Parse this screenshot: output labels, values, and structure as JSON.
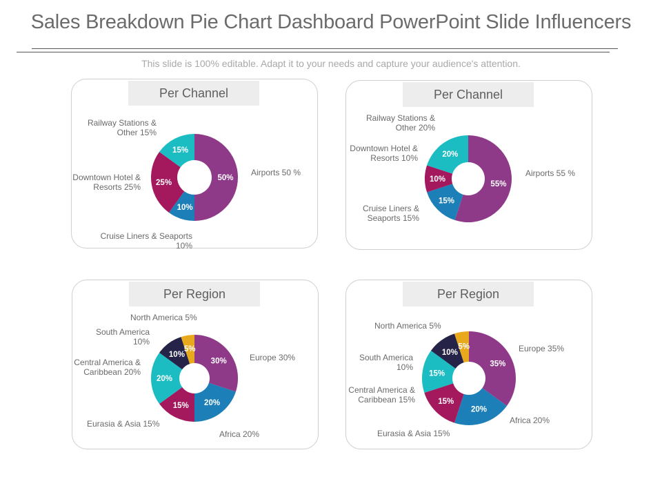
{
  "slide": {
    "title": "Sales Breakdown Pie Chart Dashboard PowerPoint Slide Influencers",
    "subtitle": "This slide is 100% editable. Adapt it to your needs and capture your audience's attention."
  },
  "colors": {
    "purple": "#8e3a88",
    "magenta": "#a4185e",
    "teal": "#1cbcc3",
    "blue": "#1c7fb8",
    "navy": "#252348",
    "gold": "#e8a91c"
  },
  "chart_data": [
    {
      "type": "pie",
      "style": "donut",
      "title": "Per Channel",
      "slices": [
        {
          "label": "Airports",
          "value": 50,
          "inner_label": "50%",
          "callout": "Airports 50 %",
          "color": "#8e3a88"
        },
        {
          "label": "Cruise Liners & Seaports",
          "value": 10,
          "inner_label": "10%",
          "callout_lines": [
            "Cruise Liners & Seaports",
            "10%"
          ],
          "color": "#1c7fb8"
        },
        {
          "label": "Downtown Hotel & Resorts",
          "value": 25,
          "inner_label": "25%",
          "callout_lines": [
            "Downtown Hotel &",
            "Resorts 25%"
          ],
          "color": "#a4185e"
        },
        {
          "label": "Railway Stations & Other",
          "value": 15,
          "inner_label": "15%",
          "callout_lines": [
            "Railway Stations &",
            "Other 15%"
          ],
          "color": "#1cbcc3"
        }
      ]
    },
    {
      "type": "pie",
      "style": "donut",
      "title": "Per Channel",
      "slices": [
        {
          "label": "Airports",
          "value": 55,
          "inner_label": "55%",
          "callout": "Airports 55 %",
          "color": "#8e3a88"
        },
        {
          "label": "Cruise Liners & Seaports",
          "value": 15,
          "inner_label": "15%",
          "callout_lines": [
            "Cruise Liners &",
            "Seaports 15%"
          ],
          "color": "#1c7fb8"
        },
        {
          "label": "Downtown Hotel & Resorts",
          "value": 10,
          "inner_label": "10%",
          "callout_lines": [
            "Downtown Hotel &",
            "Resorts 10%"
          ],
          "color": "#a4185e"
        },
        {
          "label": "Railway Stations & Other",
          "value": 20,
          "inner_label": "20%",
          "callout_lines": [
            "Railway Stations &",
            "Other 20%"
          ],
          "color": "#1cbcc3"
        }
      ]
    },
    {
      "type": "pie",
      "style": "donut",
      "title": "Per Region",
      "slices": [
        {
          "label": "Europe",
          "value": 30,
          "inner_label": "30%",
          "callout": "Europe 30%",
          "color": "#8e3a88"
        },
        {
          "label": "Africa",
          "value": 20,
          "inner_label": "20%",
          "callout": "Africa 20%",
          "color": "#1c7fb8"
        },
        {
          "label": "Eurasia & Asia",
          "value": 15,
          "inner_label": "15%",
          "callout": "Eurasia & Asia 15%",
          "color": "#a4185e"
        },
        {
          "label": "Central America & Caribbean",
          "value": 20,
          "inner_label": "20%",
          "callout_lines": [
            "Central America &",
            "Caribbean 20%"
          ],
          "color": "#1cbcc3"
        },
        {
          "label": "South America",
          "value": 10,
          "inner_label": "10%",
          "callout_lines": [
            "South America",
            "10%"
          ],
          "color": "#252348"
        },
        {
          "label": "North America",
          "value": 5,
          "inner_label": "5%",
          "callout": "North America 5%",
          "color": "#e8a91c"
        }
      ]
    },
    {
      "type": "pie",
      "style": "donut",
      "title": "Per Region",
      "slices": [
        {
          "label": "Europe",
          "value": 35,
          "inner_label": "35%",
          "callout": "Europe 35%",
          "color": "#8e3a88"
        },
        {
          "label": "Africa",
          "value": 20,
          "inner_label": "20%",
          "callout": "Africa 20%",
          "color": "#1c7fb8"
        },
        {
          "label": "Eurasia & Asia",
          "value": 15,
          "inner_label": "15%",
          "callout": "Eurasia & Asia 15%",
          "color": "#a4185e"
        },
        {
          "label": "Central America & Caribbean",
          "value": 15,
          "inner_label": "15%",
          "callout_lines": [
            "Central America &",
            "Caribbean 15%"
          ],
          "color": "#1cbcc3"
        },
        {
          "label": "South America",
          "value": 10,
          "inner_label": "10%",
          "callout_lines": [
            "South America",
            "10%"
          ],
          "color": "#252348"
        },
        {
          "label": "North America",
          "value": 5,
          "inner_label": "5%",
          "callout": "North America 5%",
          "color": "#e8a91c"
        }
      ]
    }
  ]
}
